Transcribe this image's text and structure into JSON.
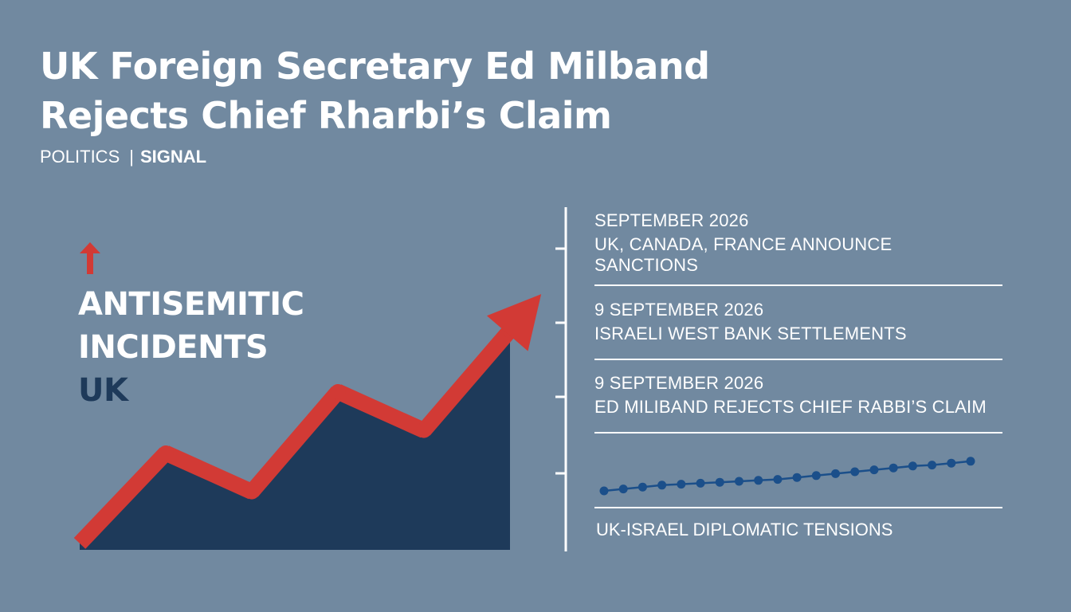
{
  "header": {
    "headline_line1": "UK Foreign Secretary Ed Milband",
    "headline_line2": "Rejects Chief Rharbi’s Claim",
    "tag1": "POLITICS",
    "separator": "|",
    "tag2": "SIGNAL"
  },
  "chart_data": [
    {
      "type": "area",
      "title_line1": "ANTISEMITIC",
      "title_line2_a": "INCIDENTS",
      "title_line2_b": "UK",
      "x": [
        0,
        1,
        2,
        3,
        4,
        5
      ],
      "values": [
        2,
        30,
        18,
        49,
        37,
        68
      ],
      "ylim": [
        0,
        100
      ],
      "colors": {
        "area": "#1e3a5a",
        "line": "#d23a35"
      }
    },
    {
      "type": "line",
      "title": "UK-ISRAEL DIPLOMATIC TENSIONS",
      "x": [
        0,
        1,
        2,
        3,
        4,
        5,
        6,
        7,
        8,
        9,
        10,
        11,
        12,
        13,
        14,
        15,
        16,
        17,
        18,
        19
      ],
      "values": [
        10,
        12,
        14,
        16,
        17,
        18,
        19,
        20,
        21,
        22,
        24,
        26,
        28,
        30,
        32,
        34,
        36,
        37,
        39,
        41
      ],
      "ylim": [
        0,
        100
      ],
      "colors": {
        "line": "#1b4f8a",
        "points": "#1b4f8a"
      }
    }
  ],
  "timeline": [
    {
      "date": "SEPTEMBER 2026",
      "text": "UK, CANADA, FRANCE ANNOUNCE SANCTIONS"
    },
    {
      "date": "9 SEPTEMBER 2026",
      "text": "ISRAELI WEST BANK SETTLEMENTS"
    },
    {
      "date": "9 SEPTEMBER 2026",
      "text": "ED MILIBAND REJECTS CHIEF RABBI’S CLAIM"
    }
  ],
  "colors": {
    "background": "#7189a0",
    "arrow": "#d23a35",
    "accent_dark": "#1e3a5a",
    "rule": "#ffffff"
  }
}
